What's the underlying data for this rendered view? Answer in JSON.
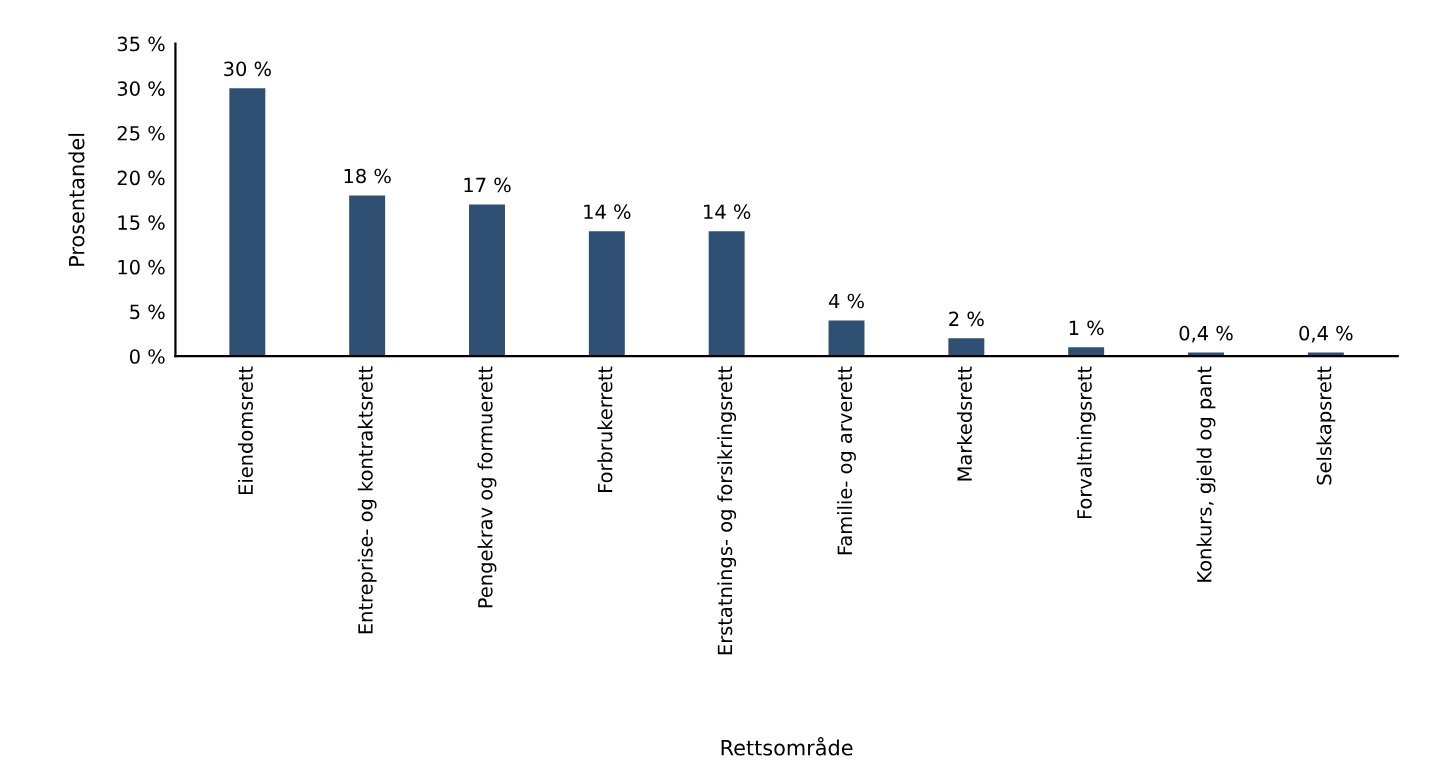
{
  "chart_data": {
    "type": "bar",
    "categories": [
      "Eiendomsrett",
      "Entreprise- og kontraktsrett",
      "Pengekrav og formuerett",
      "Forbrukerrett",
      "Erstatnings- og forsikringsrett",
      "Familie- og arverett",
      "Markedsrett",
      "Forvaltningsrett",
      "Konkurs, gjeld og pant",
      "Selskapsrett"
    ],
    "values": [
      30,
      18,
      17,
      14,
      14,
      4,
      2,
      1,
      0.4,
      0.4
    ],
    "value_labels": [
      "30 %",
      "18 %",
      "17 %",
      "14 %",
      "14 %",
      "4 %",
      "2 %",
      "1 %",
      "0,4 %",
      "0,4 %"
    ],
    "color": "#2f5072",
    "xlabel": "Rettsområde",
    "ylabel": "Prosentandel",
    "ylim": [
      0,
      35
    ],
    "yticks": [
      {
        "value": 0,
        "label": "0 %"
      },
      {
        "value": 5,
        "label": "5 %"
      },
      {
        "value": 10,
        "label": "10 %"
      },
      {
        "value": 15,
        "label": "15 %"
      },
      {
        "value": 20,
        "label": "20 %"
      },
      {
        "value": 25,
        "label": "25 %"
      },
      {
        "value": 30,
        "label": "30 %"
      },
      {
        "value": 35,
        "label": "35 %"
      }
    ],
    "grid": false
  }
}
